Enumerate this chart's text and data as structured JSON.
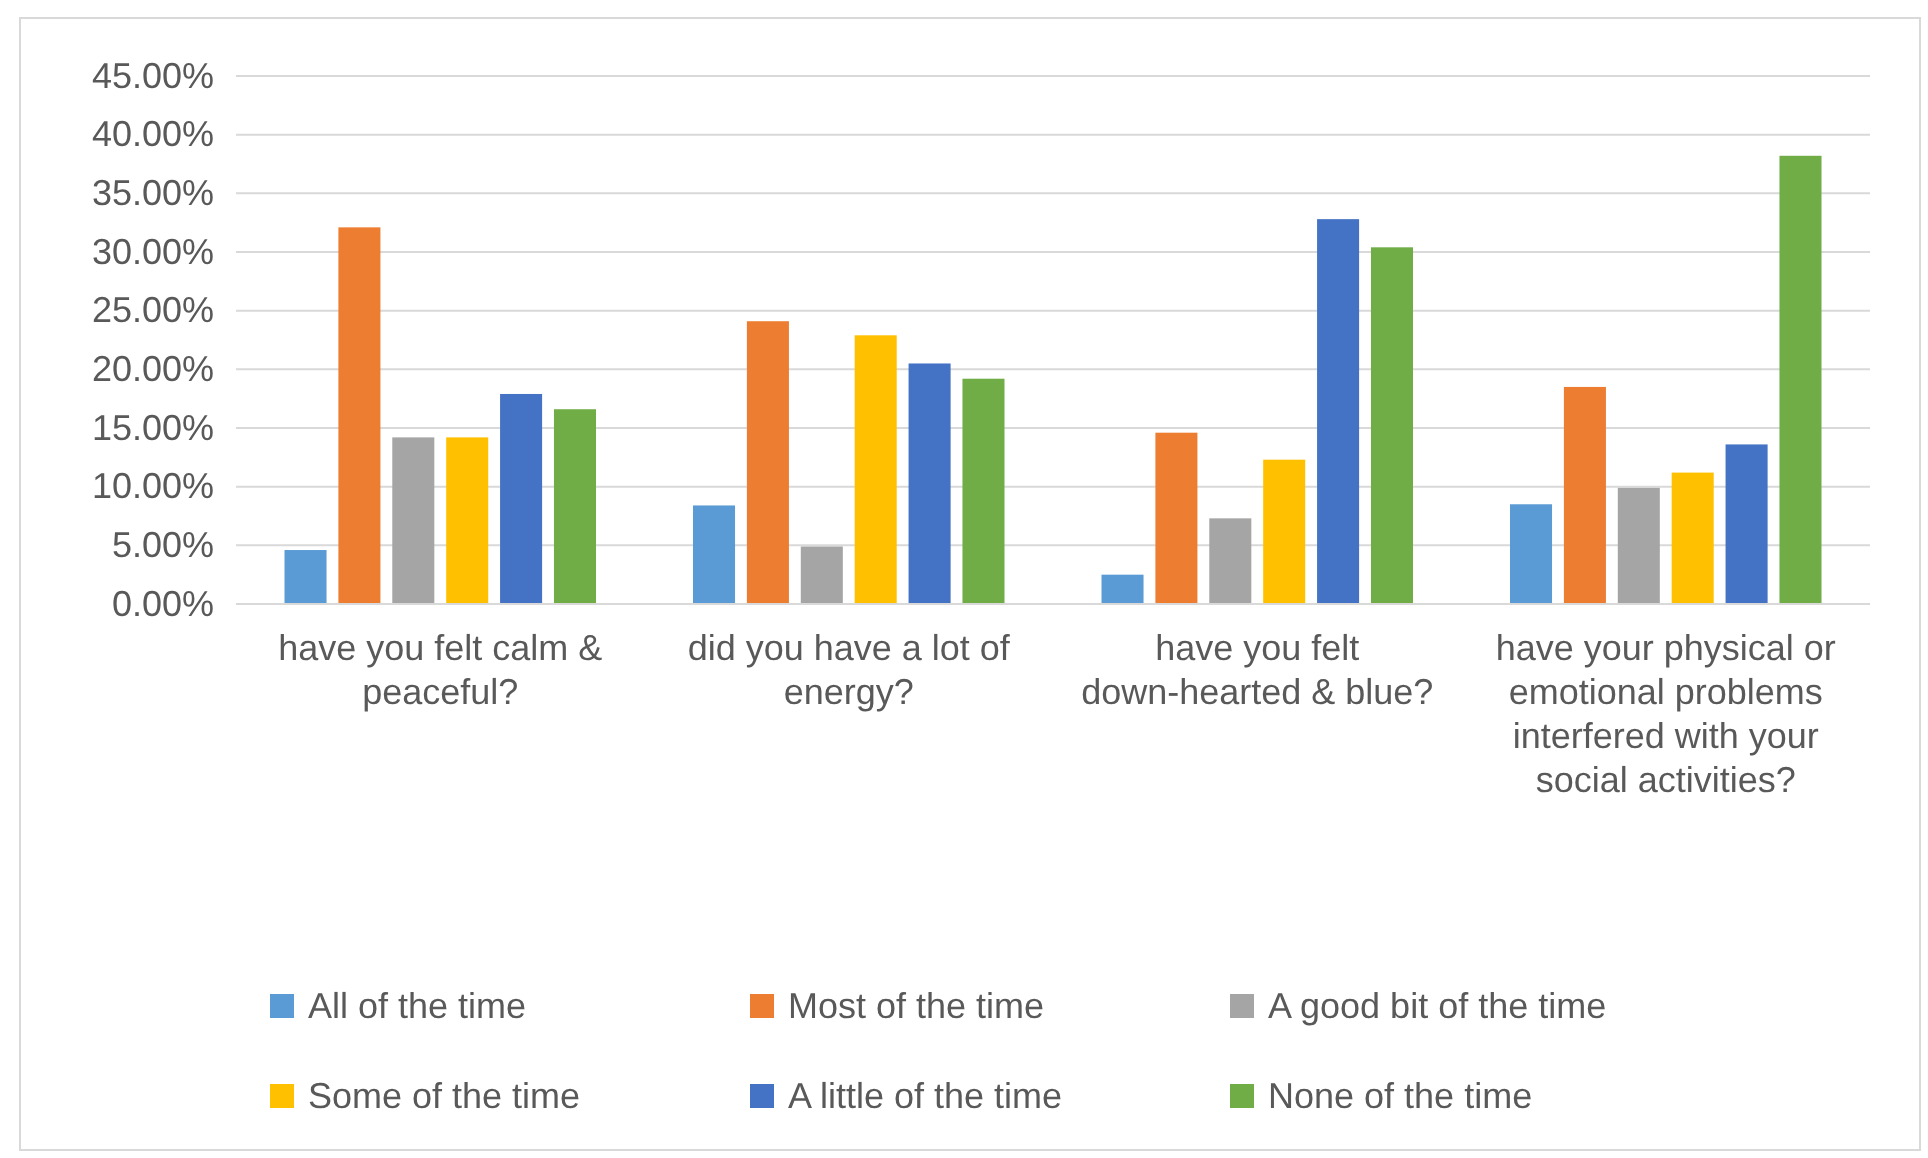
{
  "chart_data": {
    "type": "bar",
    "categories": [
      "have you felt calm & peaceful?",
      "did you have a lot of energy?",
      "have you felt down-hearted & blue?",
      "have your physical or emotional problems interfered with your social activities?"
    ],
    "series": [
      {
        "name": "All of the time",
        "color": "#5b9bd5",
        "values": [
          4.6,
          8.4,
          2.5,
          8.5
        ]
      },
      {
        "name": "Most of the time",
        "color": "#ed7d31",
        "values": [
          32.1,
          24.1,
          14.6,
          18.5
        ]
      },
      {
        "name": "A good bit of the time",
        "color": "#a5a5a5",
        "values": [
          14.2,
          4.9,
          7.3,
          9.9
        ]
      },
      {
        "name": "Some of the time",
        "color": "#ffc000",
        "values": [
          14.2,
          22.9,
          12.3,
          11.2
        ]
      },
      {
        "name": "A little of the time",
        "color": "#4472c4",
        "values": [
          17.9,
          20.5,
          32.8,
          13.6
        ]
      },
      {
        "name": "None of the time",
        "color": "#70ad47",
        "values": [
          16.6,
          19.2,
          30.4,
          38.2
        ]
      }
    ],
    "ylim": [
      0,
      45
    ],
    "yticks": [
      {
        "value": 0,
        "label": "0.00%"
      },
      {
        "value": 5,
        "label": "5.00%"
      },
      {
        "value": 10,
        "label": "10.00%"
      },
      {
        "value": 15,
        "label": "15.00%"
      },
      {
        "value": 20,
        "label": "20.00%"
      },
      {
        "value": 25,
        "label": "25.00%"
      },
      {
        "value": 30,
        "label": "30.00%"
      },
      {
        "value": 35,
        "label": "35.00%"
      },
      {
        "value": 40,
        "label": "40.00%"
      },
      {
        "value": 45,
        "label": "45.00%"
      }
    ],
    "grid": "y",
    "legend": "bottom"
  }
}
